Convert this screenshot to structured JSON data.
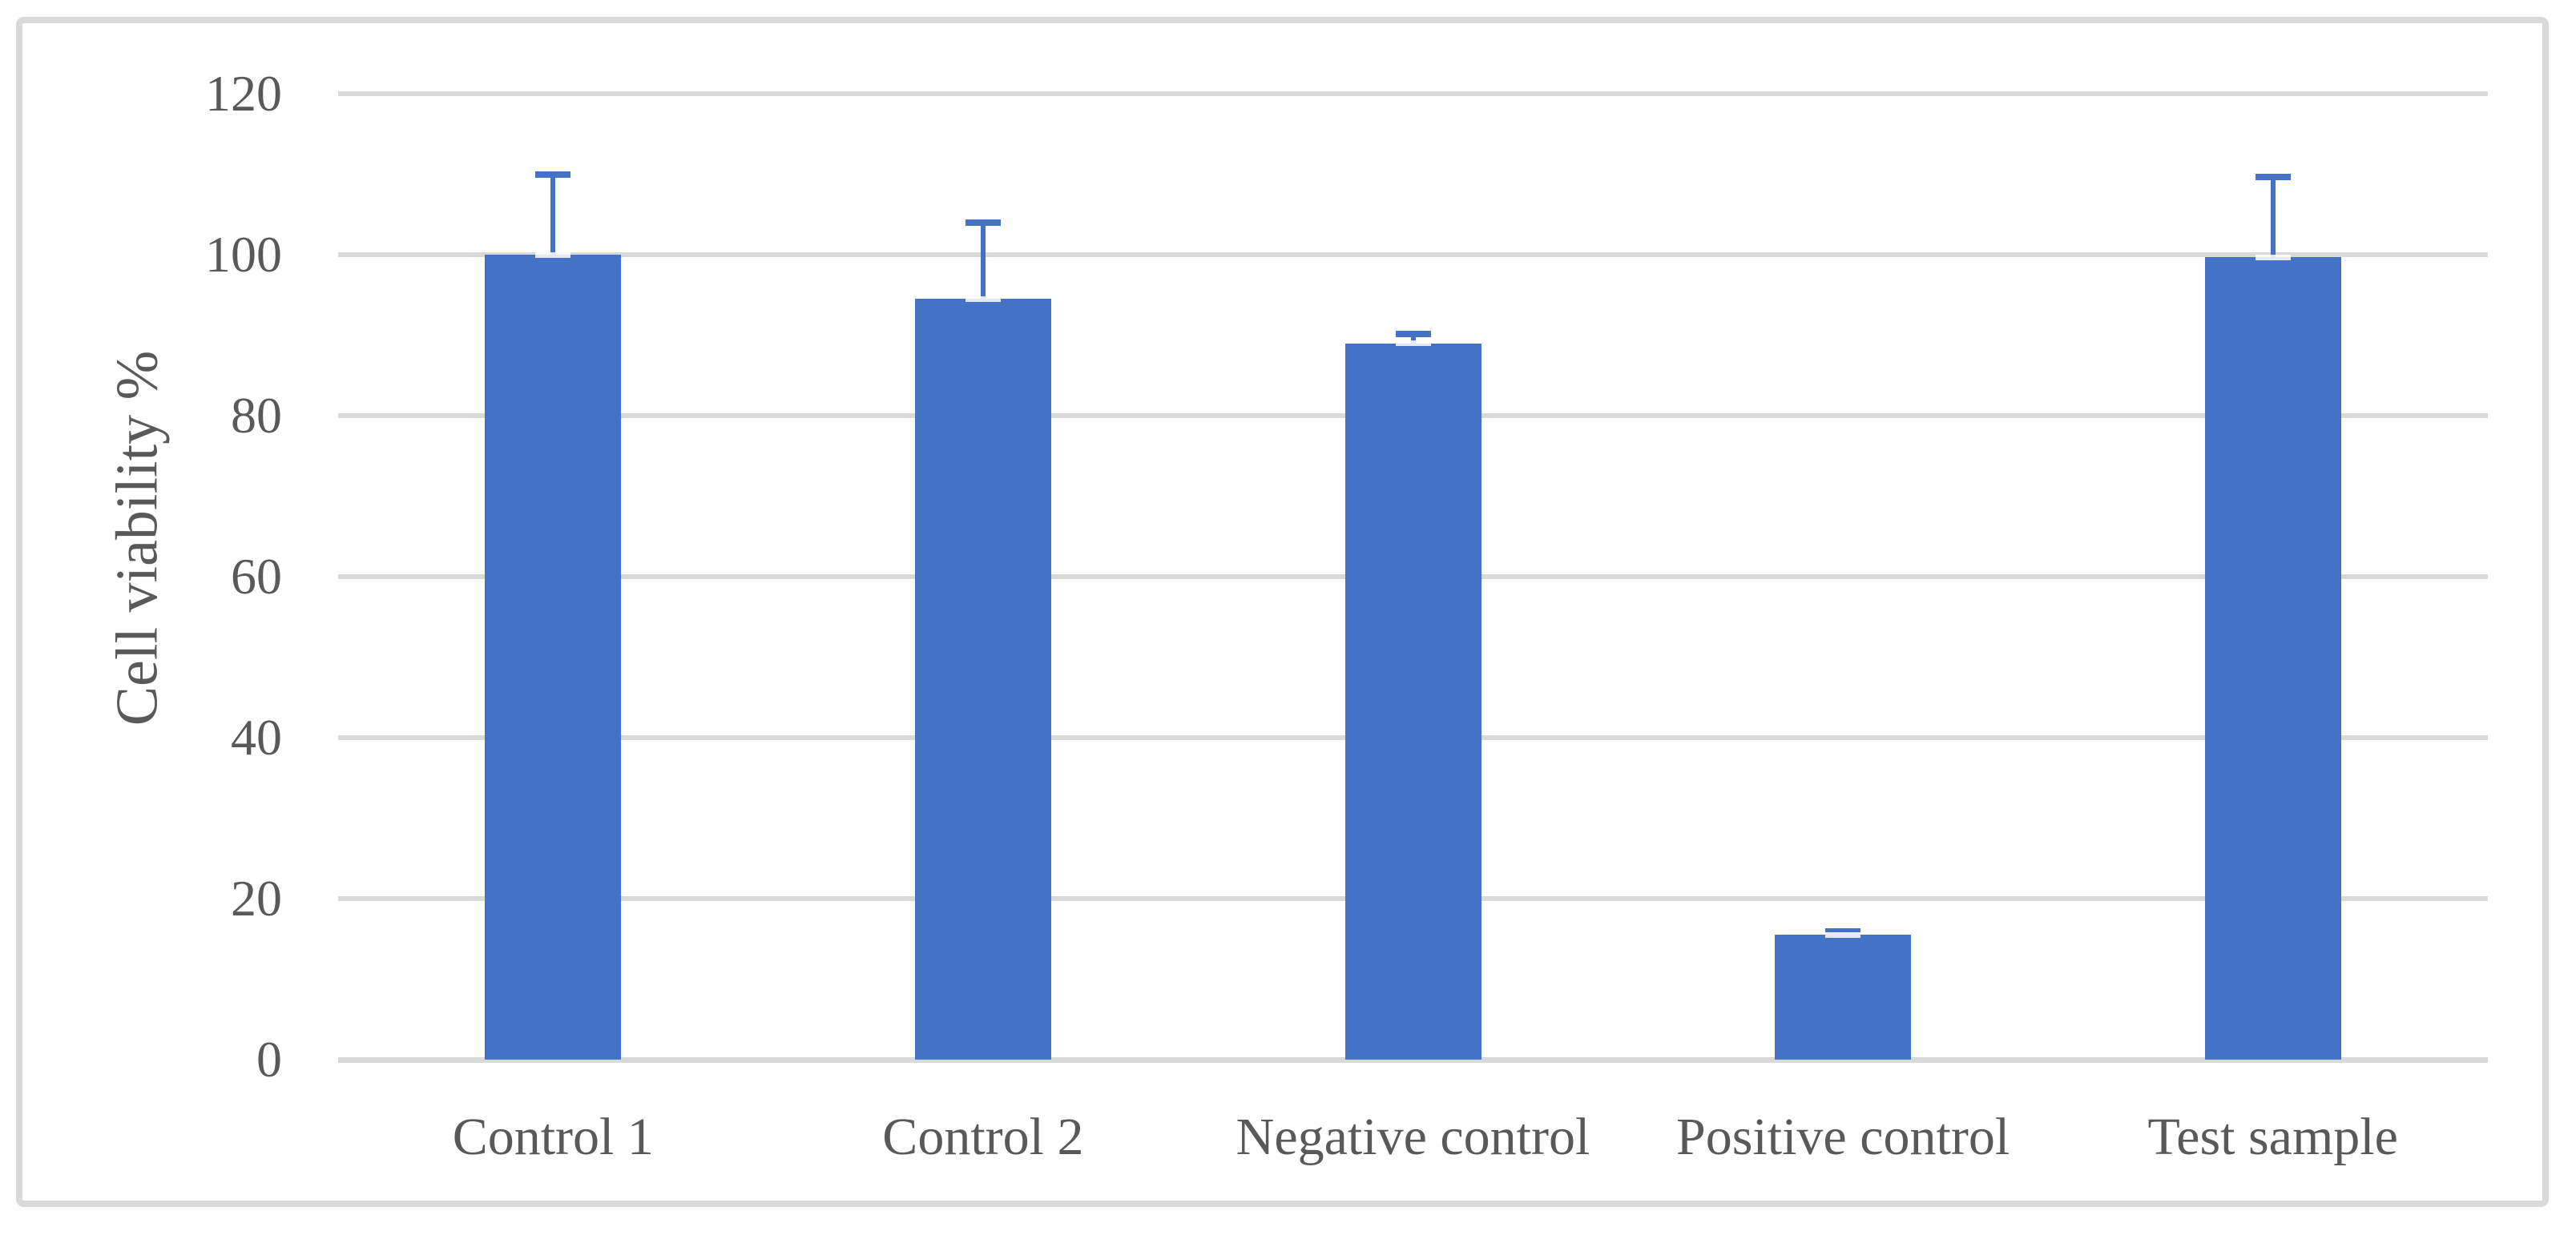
{
  "figure": {
    "background": "#FFFFFF",
    "frame_border_color": "#D9D9D9"
  },
  "chart_data": {
    "type": "bar",
    "title": "",
    "xlabel": "",
    "ylabel": "Cell viability %",
    "categories": [
      "Control 1",
      "Control 2",
      "Negative control",
      "Positive control",
      "Test sample"
    ],
    "values": [
      100,
      94.5,
      89,
      15.5,
      99.7
    ],
    "error_plus": [
      10,
      9.5,
      1.2,
      0.4,
      10
    ],
    "ylim": [
      0,
      120
    ],
    "yticks": [
      0,
      20,
      40,
      60,
      80,
      100,
      120
    ],
    "grid": true,
    "legend": false,
    "colors": {
      "bar_fill": "#4472C4",
      "error_bar": "#4472C4",
      "error_base_cap": "rgba(255,255,255,0.85)",
      "gridline": "#D9D9D9",
      "axis_line": "#D9D9D9",
      "text": "#595959"
    }
  }
}
